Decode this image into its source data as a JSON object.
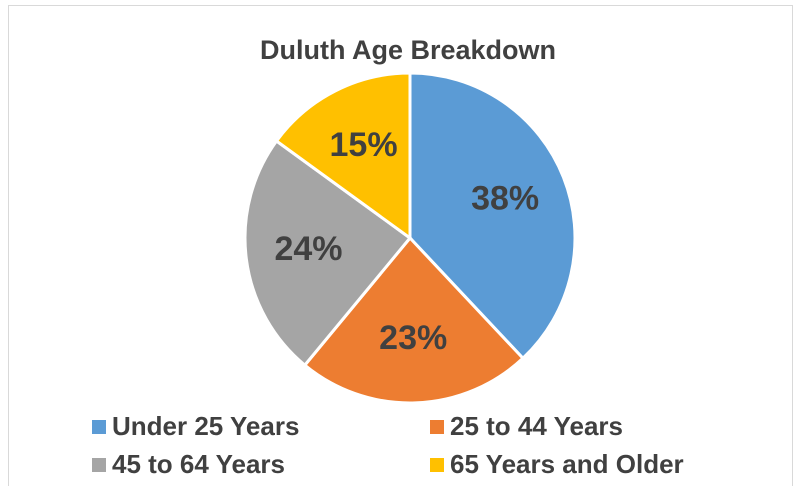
{
  "chart_data": {
    "type": "pie",
    "title": "Duluth Age Breakdown",
    "categories": [
      "Under 25 Years",
      "25 to 44 Years",
      "45 to 64 Years",
      "65 Years and Older"
    ],
    "values": [
      38,
      23,
      24,
      15
    ],
    "value_labels": [
      "38%",
      "23%",
      "24%",
      "15%"
    ],
    "colors": [
      "#5b9bd5",
      "#ed7d31",
      "#a5a5a5",
      "#ffc000"
    ],
    "legend": "bottom"
  }
}
